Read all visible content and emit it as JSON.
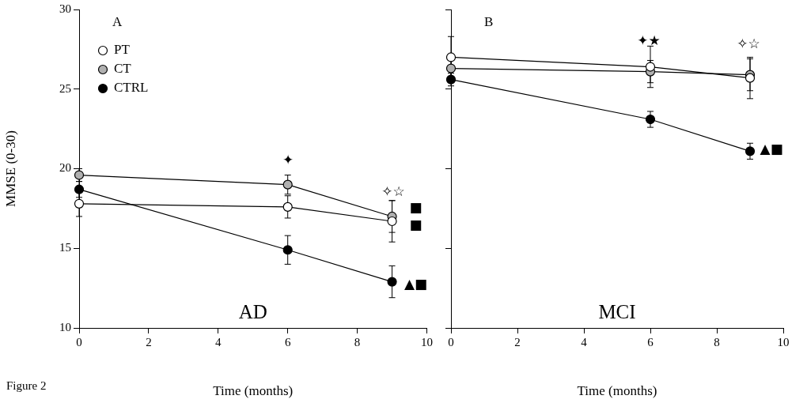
{
  "caption": "Figure 2",
  "chart_data": [
    {
      "type": "line",
      "title": "A",
      "subtitle": "AD",
      "xlabel": "Time (months)",
      "ylabel": "MMSE (0-30)",
      "x": [
        0,
        6,
        9
      ],
      "xlim": [
        0,
        10
      ],
      "xticks": [
        0,
        2,
        4,
        6,
        8,
        10
      ],
      "ylim": [
        10,
        30
      ],
      "yticks": [
        10,
        15,
        20,
        25,
        30
      ],
      "grid": false,
      "legend": "upper left",
      "marker": "circle",
      "line_style": "solid",
      "series": [
        {
          "name": "PT",
          "color": "#ffffff",
          "values": [
            17.8,
            17.6,
            16.7
          ],
          "errors": [
            0.8,
            0.7,
            1.3
          ]
        },
        {
          "name": "CT",
          "color": "#b0b0b0",
          "values": [
            19.6,
            19.0,
            17.0
          ],
          "errors": [
            0.4,
            0.6,
            1.0
          ]
        },
        {
          "name": "CTRL",
          "color": "#000000",
          "values": [
            18.7,
            14.9,
            12.9
          ],
          "errors": [
            0.5,
            0.9,
            1.0
          ]
        }
      ],
      "annotations": [
        {
          "text": "✦",
          "x": 5.85,
          "y": 20.5
        },
        {
          "text": "✧☆",
          "x": 8.7,
          "y": 18.5
        },
        {
          "text": "■",
          "x": 9.5,
          "y": 17.5
        },
        {
          "text": "■",
          "x": 9.5,
          "y": 16.4
        },
        {
          "text": "▲■",
          "x": 9.35,
          "y": 12.7
        }
      ]
    },
    {
      "type": "line",
      "title": "B",
      "subtitle": "MCI",
      "xlabel": "Time (months)",
      "x": [
        0,
        6,
        9
      ],
      "xlim": [
        0,
        10
      ],
      "xticks": [
        0,
        2,
        4,
        6,
        8,
        10
      ],
      "ylim": [
        10,
        30
      ],
      "yticks": [
        10,
        15,
        20,
        25,
        30
      ],
      "grid": false,
      "tick_labels": "x",
      "marker": "circle",
      "line_style": "solid",
      "series": [
        {
          "name": "PT",
          "color": "#ffffff",
          "values": [
            27.0,
            26.4,
            25.7
          ],
          "errors": [
            1.3,
            1.3,
            1.3
          ]
        },
        {
          "name": "CT",
          "color": "#b0b0b0",
          "values": [
            26.3,
            26.1,
            25.9
          ],
          "errors": [
            0.5,
            0.7,
            1.0
          ]
        },
        {
          "name": "CTRL",
          "color": "#000000",
          "values": [
            25.6,
            23.1,
            21.1
          ],
          "errors": [
            0.4,
            0.5,
            0.5
          ]
        }
      ],
      "annotations": [
        {
          "text": "✦★",
          "x": 5.6,
          "y": 28.0
        },
        {
          "text": "✧☆",
          "x": 8.6,
          "y": 27.8
        },
        {
          "text": "▲■",
          "x": 9.3,
          "y": 21.2
        }
      ]
    }
  ]
}
